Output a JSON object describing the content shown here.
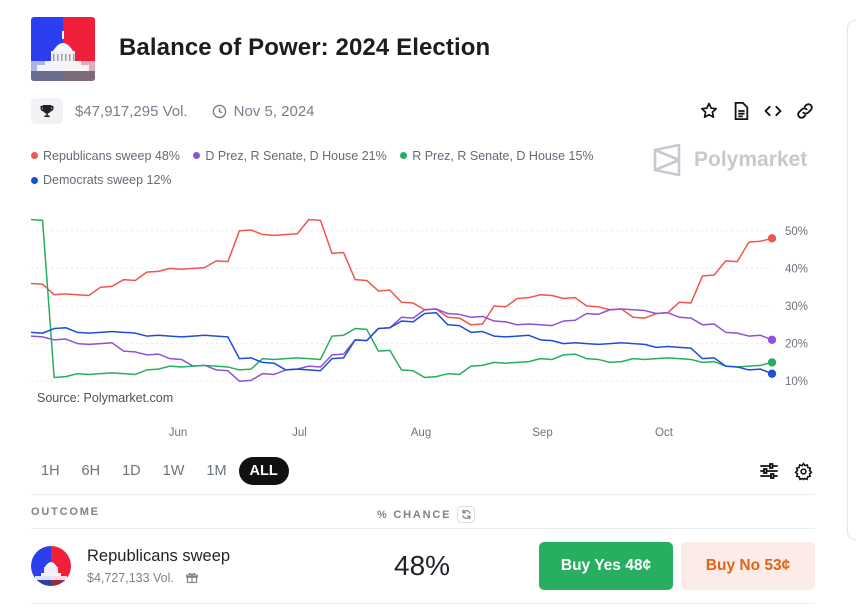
{
  "market": {
    "title": "Balance of Power: 2024 Election",
    "volume": "$47,917,295 Vol.",
    "date": "Nov 5, 2024"
  },
  "header_icons": [
    "trophy-icon",
    "clock-icon",
    "star-icon",
    "document-icon",
    "embed-icon",
    "link-icon"
  ],
  "legend": [
    {
      "label": "Republicans sweep 48%",
      "color": "#f0564c"
    },
    {
      "label": "D Prez, R Senate, D House 21%",
      "color": "#8e52d9"
    },
    {
      "label": "R Prez, R Senate, D House 15%",
      "color": "#27ae60"
    },
    {
      "label": "Democrats sweep 12%",
      "color": "#1d4ed8"
    }
  ],
  "watermark": "Polymarket",
  "source": "Source: Polymarket.com",
  "chart_data": {
    "type": "line",
    "x_labels": [
      "Jun",
      "Jul",
      "Aug",
      "Sep",
      "Oct"
    ],
    "y_ticks": [
      "10%",
      "20%",
      "30%",
      "40%",
      "50%"
    ],
    "ylim": [
      5,
      55
    ],
    "series": [
      {
        "name": "Republicans sweep",
        "color": "#f0564c",
        "values": [
          36,
          33,
          33,
          35,
          37,
          39,
          40,
          40,
          42,
          50,
          49,
          49,
          53,
          44,
          37,
          34,
          31,
          29,
          27,
          25,
          30,
          32,
          33,
          32,
          30,
          29,
          27,
          28,
          31,
          38,
          42,
          47,
          48
        ]
      },
      {
        "name": "D Prez, R Senate, D House",
        "color": "#8e52d9",
        "values": [
          22,
          21,
          20,
          20,
          18,
          17,
          16,
          14,
          13,
          10,
          12,
          13,
          14,
          17,
          21,
          24,
          27,
          29,
          28,
          27,
          26,
          25,
          25,
          26,
          28,
          29,
          29,
          28,
          27,
          25,
          23,
          22,
          21
        ]
      },
      {
        "name": "R Prez, R Senate, D House",
        "color": "#27ae60",
        "values": [
          53,
          11,
          12,
          12,
          12,
          13,
          14,
          14,
          14,
          13,
          16,
          16,
          16,
          22,
          24,
          18,
          13,
          11,
          12,
          14,
          15,
          15,
          16,
          17,
          16,
          15,
          16,
          16,
          16,
          15,
          14,
          14,
          15
        ]
      },
      {
        "name": "Democrats sweep",
        "color": "#1d4ed8",
        "values": [
          23,
          24,
          23,
          23,
          23,
          22,
          22,
          22,
          22,
          16,
          15,
          13,
          13,
          16,
          21,
          24,
          26,
          28,
          25,
          23,
          22,
          22,
          21,
          20,
          20,
          20,
          20,
          19,
          19,
          16,
          14,
          13,
          12
        ]
      }
    ]
  },
  "range_tabs": [
    {
      "label": "1H",
      "active": false
    },
    {
      "label": "6H",
      "active": false
    },
    {
      "label": "1D",
      "active": false
    },
    {
      "label": "1W",
      "active": false
    },
    {
      "label": "1M",
      "active": false
    },
    {
      "label": "ALL",
      "active": true
    }
  ],
  "table": {
    "outcome_header": "OUTCOME",
    "chance_header": "% CHANCE",
    "rows": [
      {
        "name": "Republicans sweep",
        "volume": "$4,727,133 Vol.",
        "chance": "48%",
        "buy_yes": "Buy Yes 48¢",
        "buy_no": "Buy No 53¢"
      }
    ]
  }
}
